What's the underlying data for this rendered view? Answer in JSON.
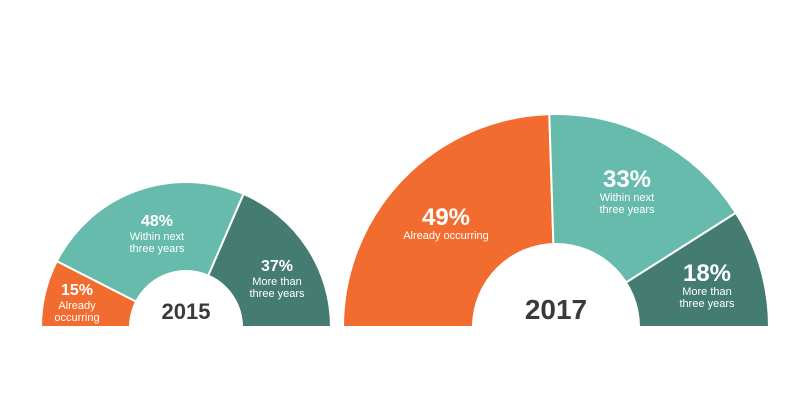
{
  "chart_data": [
    {
      "type": "pie",
      "title": "2015",
      "slices": [
        {
          "value": 15,
          "pct_label": "15%",
          "label": "Already occurring",
          "label_lines": [
            "Already",
            "occurring"
          ],
          "color": "#f26b2f"
        },
        {
          "value": 48,
          "pct_label": "48%",
          "label": "Within next three years",
          "label_lines": [
            "Within next",
            "three years"
          ],
          "color": "#66bbac"
        },
        {
          "value": 37,
          "pct_label": "37%",
          "label": "More than three years",
          "label_lines": [
            "More than",
            "three years"
          ],
          "color": "#447c72"
        }
      ]
    },
    {
      "type": "pie",
      "title": "2017",
      "slices": [
        {
          "value": 49,
          "pct_label": "49%",
          "label": "Already occurring",
          "label_lines": [
            "Already occurring"
          ],
          "color": "#f26b2f"
        },
        {
          "value": 33,
          "pct_label": "33%",
          "label": "Within next three years",
          "label_lines": [
            "Within next",
            "three years"
          ],
          "color": "#66bbac"
        },
        {
          "value": 18,
          "pct_label": "18%",
          "label": "More than three years",
          "label_lines": [
            "More than",
            "three years"
          ],
          "color": "#447c72"
        }
      ]
    }
  ]
}
